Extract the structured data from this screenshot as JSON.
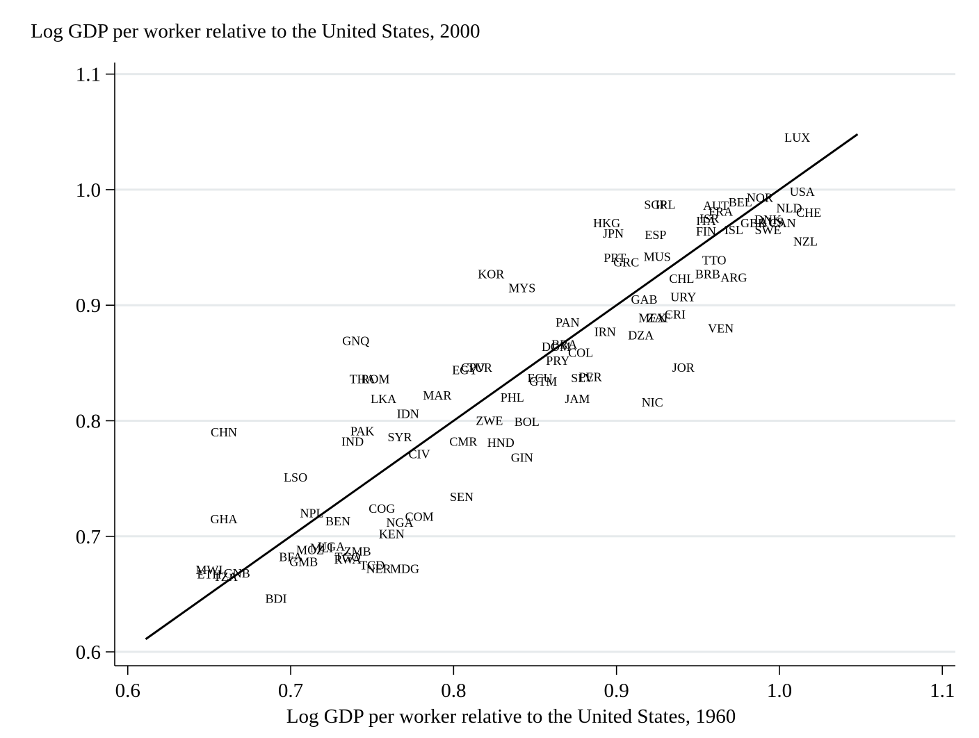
{
  "chart_data": {
    "type": "scatter",
    "title": "",
    "ylabel": "Log GDP per worker relative to the United States, 2000",
    "xlabel": "Log GDP per worker relative to the United States, 1960",
    "xlim": [
      0.592,
      1.108
    ],
    "ylim": [
      0.588,
      1.11
    ],
    "xticks": [
      0.6,
      0.7,
      0.8,
      0.9,
      1.0,
      1.1
    ],
    "xtick_labels": [
      "0.6",
      "0.7",
      "0.8",
      "0.9",
      "1.0",
      "1.1"
    ],
    "yticks": [
      0.6,
      0.7,
      0.8,
      0.9,
      1.0,
      1.1
    ],
    "ytick_labels": [
      "0.6",
      "0.7",
      "0.8",
      "0.9",
      "1.0",
      "1.1"
    ],
    "grid": true,
    "marker": "country-code-label",
    "fit_line": {
      "x": [
        0.611,
        1.048
      ],
      "y": [
        0.611,
        1.048
      ]
    },
    "points": [
      {
        "label": "LUX",
        "x": 1.011,
        "y": 1.045
      },
      {
        "label": "USA",
        "x": 1.014,
        "y": 0.998
      },
      {
        "label": "NOR",
        "x": 0.988,
        "y": 0.993
      },
      {
        "label": "BEL",
        "x": 0.976,
        "y": 0.989
      },
      {
        "label": "AUT",
        "x": 0.961,
        "y": 0.986
      },
      {
        "label": "FRA",
        "x": 0.964,
        "y": 0.981
      },
      {
        "label": "NLD",
        "x": 1.006,
        "y": 0.984
      },
      {
        "label": "CHE",
        "x": 1.018,
        "y": 0.98
      },
      {
        "label": "ISR",
        "x": 0.957,
        "y": 0.975
      },
      {
        "label": "ITA",
        "x": 0.955,
        "y": 0.973
      },
      {
        "label": "GBR",
        "x": 0.984,
        "y": 0.971
      },
      {
        "label": "DNK",
        "x": 0.993,
        "y": 0.974
      },
      {
        "label": "AUS",
        "x": 0.995,
        "y": 0.972
      },
      {
        "label": "CAN",
        "x": 1.002,
        "y": 0.971
      },
      {
        "label": "SWE",
        "x": 0.993,
        "y": 0.965
      },
      {
        "label": "ISL",
        "x": 0.972,
        "y": 0.965
      },
      {
        "label": "FIN",
        "x": 0.955,
        "y": 0.964
      },
      {
        "label": "NZL",
        "x": 1.016,
        "y": 0.955
      },
      {
        "label": "SGP",
        "x": 0.924,
        "y": 0.987
      },
      {
        "label": "IRL",
        "x": 0.93,
        "y": 0.987
      },
      {
        "label": "HKG",
        "x": 0.894,
        "y": 0.971
      },
      {
        "label": "JPN",
        "x": 0.898,
        "y": 0.962
      },
      {
        "label": "ESP",
        "x": 0.924,
        "y": 0.961
      },
      {
        "label": "PRT",
        "x": 0.899,
        "y": 0.941
      },
      {
        "label": "GRC",
        "x": 0.906,
        "y": 0.937
      },
      {
        "label": "MUS",
        "x": 0.925,
        "y": 0.942
      },
      {
        "label": "TTO",
        "x": 0.96,
        "y": 0.939
      },
      {
        "label": "BRB",
        "x": 0.956,
        "y": 0.927
      },
      {
        "label": "ARG",
        "x": 0.972,
        "y": 0.924
      },
      {
        "label": "CHL",
        "x": 0.94,
        "y": 0.923
      },
      {
        "label": "KOR",
        "x": 0.823,
        "y": 0.927
      },
      {
        "label": "MYS",
        "x": 0.842,
        "y": 0.915
      },
      {
        "label": "GAB",
        "x": 0.917,
        "y": 0.905
      },
      {
        "label": "URY",
        "x": 0.941,
        "y": 0.907
      },
      {
        "label": "MEX",
        "x": 0.922,
        "y": 0.889
      },
      {
        "label": "ZAF",
        "x": 0.926,
        "y": 0.889
      },
      {
        "label": "CRI",
        "x": 0.936,
        "y": 0.892
      },
      {
        "label": "VEN",
        "x": 0.964,
        "y": 0.88
      },
      {
        "label": "PAN",
        "x": 0.87,
        "y": 0.885
      },
      {
        "label": "IRN",
        "x": 0.893,
        "y": 0.877
      },
      {
        "label": "DZA",
        "x": 0.915,
        "y": 0.874
      },
      {
        "label": "DOM",
        "x": 0.863,
        "y": 0.864
      },
      {
        "label": "BRA",
        "x": 0.868,
        "y": 0.866
      },
      {
        "label": "COL",
        "x": 0.878,
        "y": 0.859
      },
      {
        "label": "PRY",
        "x": 0.864,
        "y": 0.852
      },
      {
        "label": "GNQ",
        "x": 0.74,
        "y": 0.869
      },
      {
        "label": "EGY",
        "x": 0.807,
        "y": 0.844
      },
      {
        "label": "CPV",
        "x": 0.812,
        "y": 0.846
      },
      {
        "label": "TUR",
        "x": 0.816,
        "y": 0.846
      },
      {
        "label": "JOR",
        "x": 0.941,
        "y": 0.846
      },
      {
        "label": "ECU",
        "x": 0.853,
        "y": 0.837
      },
      {
        "label": "GTM",
        "x": 0.855,
        "y": 0.834
      },
      {
        "label": "SLV",
        "x": 0.879,
        "y": 0.837
      },
      {
        "label": "PER",
        "x": 0.884,
        "y": 0.838
      },
      {
        "label": "THA",
        "x": 0.744,
        "y": 0.836
      },
      {
        "label": "ROM",
        "x": 0.752,
        "y": 0.836
      },
      {
        "label": "LKA",
        "x": 0.757,
        "y": 0.819
      },
      {
        "label": "MAR",
        "x": 0.79,
        "y": 0.822
      },
      {
        "label": "PHL",
        "x": 0.836,
        "y": 0.82
      },
      {
        "label": "JAM",
        "x": 0.876,
        "y": 0.819
      },
      {
        "label": "NIC",
        "x": 0.922,
        "y": 0.816
      },
      {
        "label": "IDN",
        "x": 0.772,
        "y": 0.806
      },
      {
        "label": "ZWE",
        "x": 0.822,
        "y": 0.8
      },
      {
        "label": "BOL",
        "x": 0.845,
        "y": 0.799
      },
      {
        "label": "CHN",
        "x": 0.659,
        "y": 0.79
      },
      {
        "label": "PAK",
        "x": 0.744,
        "y": 0.791
      },
      {
        "label": "IND",
        "x": 0.738,
        "y": 0.782
      },
      {
        "label": "SYR",
        "x": 0.767,
        "y": 0.786
      },
      {
        "label": "CMR",
        "x": 0.806,
        "y": 0.782
      },
      {
        "label": "HND",
        "x": 0.829,
        "y": 0.781
      },
      {
        "label": "CIV",
        "x": 0.779,
        "y": 0.771
      },
      {
        "label": "GIN",
        "x": 0.842,
        "y": 0.768
      },
      {
        "label": "LSO",
        "x": 0.703,
        "y": 0.751
      },
      {
        "label": "SEN",
        "x": 0.805,
        "y": 0.734
      },
      {
        "label": "COG",
        "x": 0.756,
        "y": 0.724
      },
      {
        "label": "COM",
        "x": 0.779,
        "y": 0.717
      },
      {
        "label": "NPL",
        "x": 0.713,
        "y": 0.72
      },
      {
        "label": "BEN",
        "x": 0.729,
        "y": 0.713
      },
      {
        "label": "NGA",
        "x": 0.767,
        "y": 0.712
      },
      {
        "label": "GHA",
        "x": 0.659,
        "y": 0.715
      },
      {
        "label": "KEN",
        "x": 0.762,
        "y": 0.702
      },
      {
        "label": "MLI",
        "x": 0.719,
        "y": 0.69
      },
      {
        "label": "UGA",
        "x": 0.725,
        "y": 0.691
      },
      {
        "label": "MOZ",
        "x": 0.712,
        "y": 0.688
      },
      {
        "label": "ZMB",
        "x": 0.741,
        "y": 0.687
      },
      {
        "label": "BFA",
        "x": 0.7,
        "y": 0.682
      },
      {
        "label": "GMB",
        "x": 0.708,
        "y": 0.678
      },
      {
        "label": "TGO",
        "x": 0.735,
        "y": 0.682
      },
      {
        "label": "RWA",
        "x": 0.735,
        "y": 0.68
      },
      {
        "label": "TCD",
        "x": 0.75,
        "y": 0.675
      },
      {
        "label": "NER",
        "x": 0.754,
        "y": 0.672
      },
      {
        "label": "MDG",
        "x": 0.77,
        "y": 0.672
      },
      {
        "label": "MWI",
        "x": 0.65,
        "y": 0.671
      },
      {
        "label": "ETH",
        "x": 0.65,
        "y": 0.667
      },
      {
        "label": "GNB",
        "x": 0.667,
        "y": 0.668
      },
      {
        "label": "TZA",
        "x": 0.66,
        "y": 0.665
      },
      {
        "label": "BDI",
        "x": 0.691,
        "y": 0.646
      }
    ]
  }
}
